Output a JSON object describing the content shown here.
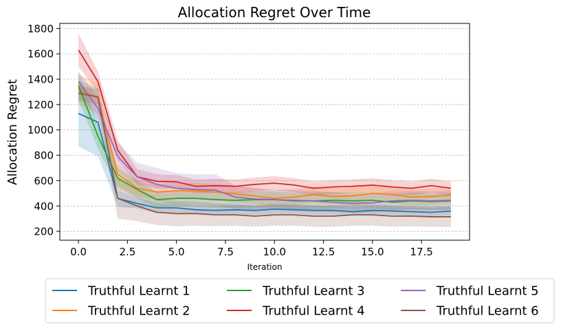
{
  "chart_data": {
    "type": "line",
    "title": "Allocation Regret Over Time",
    "xlabel": "Iteration",
    "ylabel": "Allocation Regret",
    "xlim": [
      -0.95,
      19.95
    ],
    "ylim": [
      130,
      1840
    ],
    "xticks": [
      0,
      2.5,
      5,
      7.5,
      10,
      12.5,
      15,
      17.5
    ],
    "xtick_labels": [
      "0.0",
      "2.5",
      "5.0",
      "7.5",
      "10.0",
      "12.5",
      "15.0",
      "17.5"
    ],
    "yticks": [
      200,
      400,
      600,
      800,
      1000,
      1200,
      1400,
      1600,
      1800
    ],
    "ytick_labels": [
      "200",
      "400",
      "600",
      "800",
      "1000",
      "1200",
      "1400",
      "1600",
      "1800"
    ],
    "grid": "y-dashed",
    "legend_position": "bottom",
    "x": [
      0,
      1,
      2,
      3,
      4,
      5,
      6,
      7,
      8,
      9,
      10,
      11,
      12,
      13,
      14,
      15,
      16,
      17,
      18,
      19
    ],
    "series": [
      {
        "name": "Truthful Learnt 1",
        "color": "#1f77b4",
        "values": [
          1130,
          1060,
          460,
          420,
          385,
          385,
          370,
          365,
          370,
          365,
          375,
          370,
          365,
          365,
          355,
          365,
          360,
          355,
          350,
          360
        ],
        "lower": [
          870,
          790,
          395,
          380,
          345,
          350,
          340,
          335,
          335,
          330,
          340,
          340,
          330,
          330,
          325,
          330,
          330,
          325,
          320,
          325
        ],
        "upper": [
          1390,
          1330,
          525,
          465,
          425,
          425,
          405,
          400,
          405,
          400,
          410,
          405,
          400,
          400,
          390,
          400,
          395,
          390,
          385,
          395
        ]
      },
      {
        "name": "Truthful Learnt 2",
        "color": "#ff7f0e",
        "values": [
          1320,
          1250,
          650,
          540,
          510,
          520,
          520,
          510,
          495,
          480,
          460,
          470,
          490,
          475,
          480,
          500,
          490,
          470,
          475,
          485
        ],
        "lower": [
          1200,
          1130,
          560,
          470,
          450,
          455,
          455,
          445,
          430,
          415,
          400,
          405,
          425,
          410,
          415,
          435,
          425,
          405,
          410,
          420
        ],
        "upper": [
          1440,
          1370,
          740,
          610,
          570,
          585,
          585,
          575,
          560,
          545,
          520,
          535,
          555,
          540,
          545,
          565,
          555,
          535,
          540,
          550
        ]
      },
      {
        "name": "Truthful Learnt 3",
        "color": "#2ca02c",
        "values": [
          1350,
          950,
          620,
          530,
          450,
          460,
          460,
          450,
          445,
          450,
          450,
          440,
          440,
          445,
          440,
          445,
          430,
          440,
          435,
          440
        ],
        "lower": [
          1240,
          850,
          540,
          460,
          390,
          395,
          395,
          385,
          380,
          385,
          385,
          375,
          375,
          380,
          375,
          380,
          365,
          375,
          370,
          375
        ],
        "upper": [
          1460,
          1050,
          700,
          600,
          510,
          525,
          525,
          515,
          510,
          515,
          515,
          505,
          505,
          510,
          505,
          510,
          495,
          505,
          500,
          505
        ]
      },
      {
        "name": "Truthful Learnt 4",
        "color": "#d62728",
        "values": [
          1630,
          1380,
          840,
          630,
          595,
          590,
          555,
          560,
          555,
          570,
          580,
          565,
          540,
          550,
          555,
          565,
          550,
          540,
          560,
          540
        ],
        "lower": [
          1500,
          1300,
          760,
          570,
          540,
          535,
          500,
          505,
          500,
          515,
          525,
          510,
          485,
          495,
          500,
          510,
          495,
          485,
          505,
          485
        ],
        "upper": [
          1760,
          1460,
          920,
          690,
          650,
          645,
          610,
          615,
          610,
          625,
          635,
          620,
          595,
          605,
          610,
          620,
          605,
          595,
          615,
          595
        ]
      },
      {
        "name": "Truthful Learnt 5",
        "color": "#9467bd",
        "values": [
          1380,
          1170,
          790,
          630,
          570,
          540,
          530,
          525,
          470,
          455,
          450,
          445,
          440,
          430,
          420,
          425,
          440,
          445,
          440,
          445
        ],
        "lower": [
          1300,
          1080,
          680,
          520,
          440,
          420,
          410,
          400,
          380,
          370,
          370,
          365,
          360,
          355,
          345,
          350,
          365,
          370,
          365,
          370
        ],
        "upper": [
          1460,
          1260,
          900,
          740,
          700,
          660,
          650,
          650,
          560,
          540,
          530,
          525,
          520,
          505,
          495,
          500,
          515,
          520,
          515,
          520
        ]
      },
      {
        "name": "Truthful Learnt 6",
        "color": "#8c564b",
        "values": [
          1290,
          1260,
          460,
          400,
          350,
          340,
          340,
          330,
          330,
          320,
          330,
          330,
          320,
          320,
          330,
          330,
          320,
          320,
          315,
          315
        ],
        "lower": [
          1230,
          1200,
          300,
          280,
          250,
          240,
          245,
          240,
          245,
          235,
          245,
          245,
          235,
          235,
          245,
          245,
          235,
          240,
          235,
          235
        ],
        "upper": [
          1350,
          1320,
          620,
          520,
          450,
          440,
          435,
          420,
          415,
          405,
          415,
          415,
          405,
          405,
          415,
          415,
          405,
          400,
          395,
          395
        ]
      }
    ]
  }
}
